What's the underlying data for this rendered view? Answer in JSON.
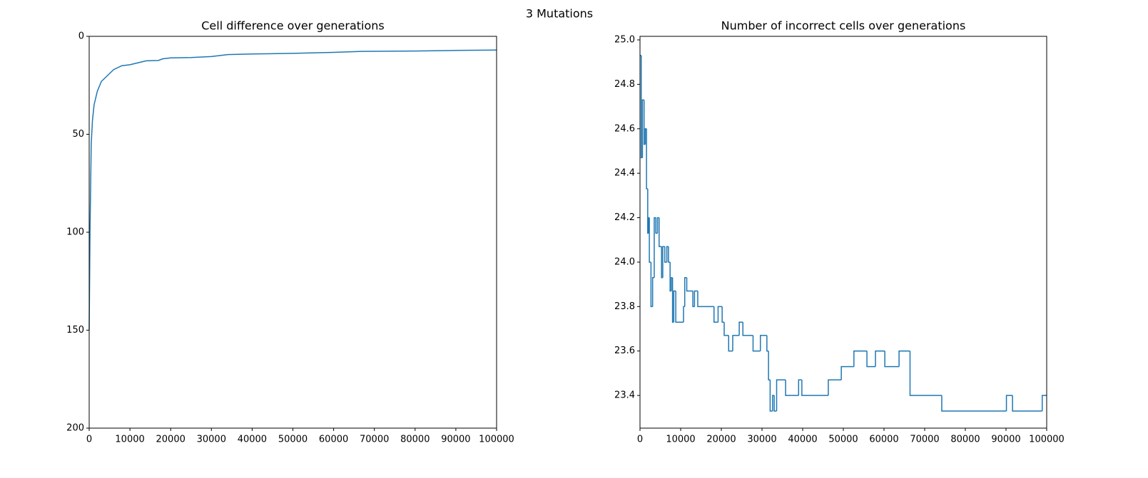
{
  "title": "3 Mutations",
  "chart_data": [
    {
      "type": "line",
      "title": "Cell difference over generations",
      "color": "#1f77b4",
      "x": [
        0,
        200,
        500,
        800,
        1200,
        2000,
        3000,
        4000,
        5000,
        6000,
        8000,
        10000,
        12000,
        14000,
        17000,
        18000,
        20000,
        25000,
        30000,
        34000,
        40000,
        50000,
        60000,
        67000,
        80000,
        90000,
        100000
      ],
      "values": [
        150,
        100,
        55,
        43,
        35,
        28,
        23,
        21,
        19,
        17,
        15,
        14.5,
        13.5,
        12.5,
        12.3,
        11.5,
        11,
        10.8,
        10.3,
        9.3,
        9,
        8.7,
        8.2,
        7.7,
        7.5,
        7.2,
        7
      ],
      "xlim": [
        0,
        100000
      ],
      "xticks": [
        0,
        10000,
        20000,
        30000,
        40000,
        50000,
        60000,
        70000,
        80000,
        90000,
        100000
      ],
      "ylim": [
        200,
        0
      ],
      "yticks": [
        0,
        50,
        100,
        150,
        200
      ]
    },
    {
      "type": "line",
      "step": "post",
      "title": "Number of incorrect cells over generations",
      "color": "#1f77b4",
      "x": [
        0,
        300,
        600,
        1000,
        1300,
        1600,
        1900,
        2100,
        2300,
        2700,
        3100,
        3500,
        3900,
        4300,
        4700,
        5300,
        5600,
        6100,
        6600,
        7000,
        7400,
        7700,
        8000,
        8300,
        8800,
        10700,
        11000,
        11500,
        13000,
        13400,
        14200,
        18200,
        19200,
        20200,
        20700,
        21800,
        22800,
        24400,
        25300,
        27800,
        29600,
        31200,
        31600,
        32000,
        32600,
        33000,
        33600,
        35800,
        39000,
        39800,
        46300,
        49500,
        52600,
        55800,
        57900,
        60200,
        63700,
        66400,
        74200,
        90100,
        91600,
        98900,
        100000
      ],
      "values": [
        24.93,
        24.47,
        24.73,
        24.53,
        24.6,
        24.33,
        24.13,
        24.2,
        24.0,
        23.8,
        23.93,
        24.2,
        24.13,
        24.2,
        24.07,
        23.93,
        24.07,
        24.0,
        24.07,
        24.0,
        23.87,
        23.93,
        23.73,
        23.87,
        23.73,
        23.8,
        23.93,
        23.87,
        23.8,
        23.87,
        23.8,
        23.73,
        23.8,
        23.73,
        23.67,
        23.6,
        23.67,
        23.73,
        23.67,
        23.6,
        23.67,
        23.6,
        23.47,
        23.33,
        23.4,
        23.33,
        23.47,
        23.4,
        23.47,
        23.4,
        23.47,
        23.53,
        23.6,
        23.53,
        23.6,
        23.53,
        23.6,
        23.4,
        23.33,
        23.4,
        23.33,
        23.4,
        23.4
      ],
      "xlim": [
        0,
        100000
      ],
      "xticks": [
        0,
        10000,
        20000,
        30000,
        40000,
        50000,
        60000,
        70000,
        80000,
        90000,
        100000
      ],
      "ylim": [
        23.253,
        25.016
      ],
      "yticks": [
        23.4,
        23.6,
        23.8,
        {
          "value": 24,
          "label": "24.0"
        },
        24.2,
        24.4,
        24.6,
        24.8,
        {
          "value": 25,
          "label": "25.0"
        }
      ]
    }
  ]
}
